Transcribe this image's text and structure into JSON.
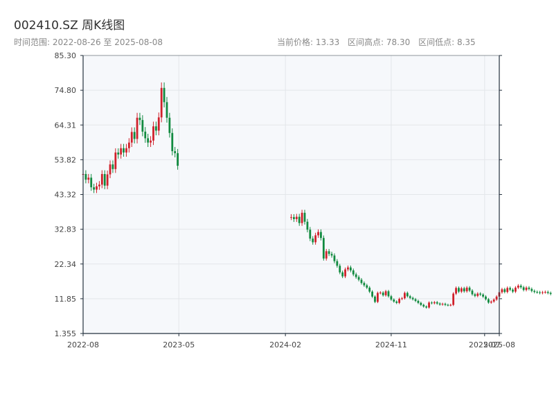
{
  "header": {
    "title": "002410.SZ 周K线图",
    "range_text": "时间范围: 2022-08-26 至 2025-08-08",
    "current_price": "当前价格: 13.33",
    "range_high": "区间高点: 78.30",
    "range_low": "区间低点: 8.35"
  },
  "colors": {
    "up": "#d0202a",
    "down": "#118a3f",
    "plot_bg": "#f6f8fb",
    "grid": "#e3e6ea",
    "axis": "#23303d"
  },
  "chart_data": {
    "type": "candlestick",
    "title": "002410.SZ 周K线图",
    "date_range": [
      "2022-08-26",
      "2025-08-08"
    ],
    "ylim": [
      1.355,
      85.3
    ],
    "yticks": [
      "1.355",
      "11.85",
      "22.34",
      "32.83",
      "43.32",
      "53.82",
      "64.31",
      "74.80",
      "85.30"
    ],
    "xticks": [
      {
        "label": "2022-08",
        "t": "2022-08-26"
      },
      {
        "label": "2023-05",
        "t": "2023-05-01"
      },
      {
        "label": "2024-02",
        "t": "2024-02-01"
      },
      {
        "label": "2024-11",
        "t": "2024-11-01"
      },
      {
        "label": "2025-07",
        "t": "2025-07-01"
      },
      {
        "label": "2025-08",
        "t": "2025-08-08"
      }
    ],
    "close": [
      49.5,
      47.8,
      48.4,
      45.5,
      44.8,
      45.8,
      46.3,
      49.5,
      46.0,
      49.4,
      52.4,
      51.0,
      56.0,
      55.4,
      57.3,
      56.0,
      57.3,
      59.0,
      62.2,
      60.1,
      66.5,
      65.8,
      62.3,
      60.3,
      59.0,
      59.6,
      63.9,
      62.6,
      66.6,
      75.5,
      71.2,
      66.5,
      61.9,
      56.4,
      55.8,
      52.0,
      null,
      null,
      null,
      null,
      null,
      null,
      null,
      null,
      null,
      null,
      null,
      null,
      null,
      null,
      null,
      null,
      null,
      null,
      null,
      null,
      null,
      null,
      null,
      null,
      null,
      null,
      null,
      null,
      null,
      null,
      null,
      null,
      null,
      null,
      null,
      null,
      null,
      null,
      null,
      null,
      null,
      36.5,
      35.9,
      36.6,
      34.7,
      37.8,
      35.1,
      32.7,
      30.0,
      28.9,
      31.0,
      32.0,
      30.2,
      24.0,
      26.2,
      25.4,
      24.9,
      23.2,
      21.8,
      19.8,
      18.6,
      20.7,
      21.3,
      20.4,
      19.2,
      18.4,
      17.6,
      16.6,
      15.9,
      15.2,
      14.0,
      12.5,
      10.9,
      13.6,
      13.7,
      12.9,
      14.1,
      12.6,
      11.6,
      11.0,
      10.6,
      11.8,
      12.0,
      13.6,
      12.6,
      12.1,
      11.7,
      11.2,
      10.6,
      10.0,
      9.5,
      9.2,
      10.7,
      10.5,
      10.8,
      10.4,
      10.1,
      10.3,
      10.0,
      9.9,
      10.0,
      13.4,
      15.1,
      14.0,
      15.0,
      14.1,
      15.2,
      14.3,
      13.2,
      12.7,
      13.4,
      13.1,
      12.5,
      11.7,
      10.7,
      11.0,
      11.6,
      12.5,
      13.8,
      14.7,
      13.9,
      15.1,
      14.6,
      14.0,
      15.2,
      15.8,
      15.3,
      14.5,
      15.2,
      14.8,
      14.2,
      13.9,
      13.8,
      13.6,
      13.8,
      13.9,
      13.6,
      13.3
    ],
    "last_close": 13.33,
    "range_high": 78.3,
    "range_low": 8.35
  }
}
